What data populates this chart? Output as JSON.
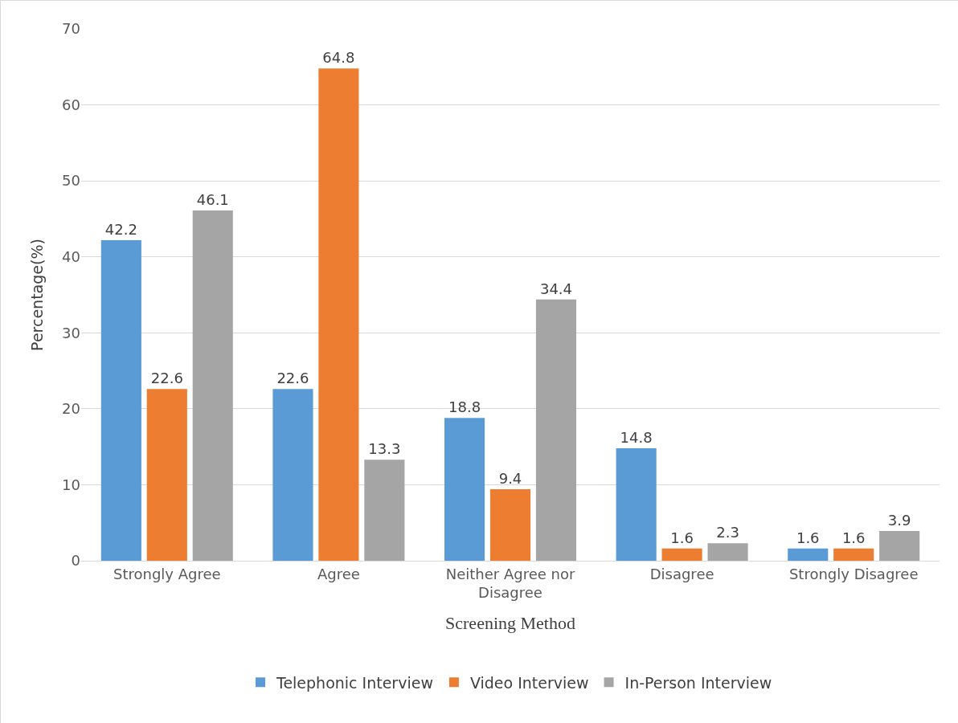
{
  "chart_data": {
    "type": "bar",
    "xlabel": "Screening Method",
    "ylabel": "Percentage(%)",
    "categories": [
      "Strongly Agree",
      "Agree",
      "Neither Agree nor Disagree",
      "Disagree",
      "Strongly Disagree"
    ],
    "series": [
      {
        "name": "Telephonic Interview",
        "color": "#5b9bd5",
        "values": [
          42.2,
          22.6,
          18.8,
          14.8,
          1.6
        ]
      },
      {
        "name": "Video Interview",
        "color": "#ed7d31",
        "values": [
          22.6,
          64.8,
          9.4,
          1.6,
          1.6
        ]
      },
      {
        "name": "In-Person Interview",
        "color": "#a5a5a5",
        "values": [
          46.1,
          13.3,
          34.4,
          2.3,
          3.9
        ]
      }
    ],
    "ylim": [
      0,
      70
    ],
    "yticks": [
      0,
      10,
      20,
      30,
      40,
      50,
      60,
      70
    ],
    "grid": "y",
    "legend": "bottom",
    "data_labels": true
  }
}
